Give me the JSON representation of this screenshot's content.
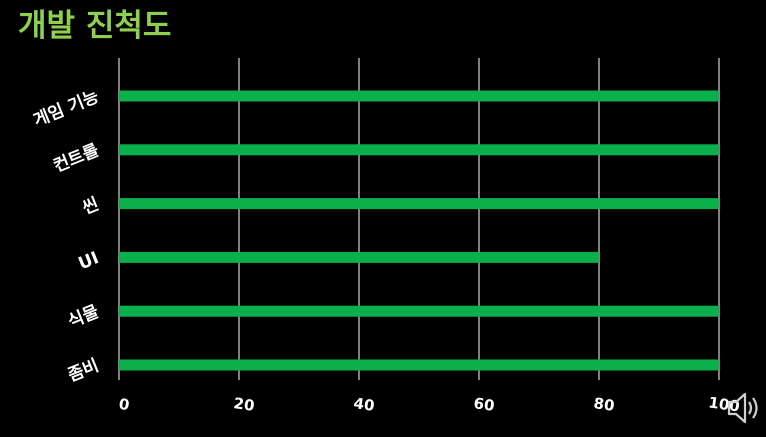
{
  "chart_data": {
    "type": "bar",
    "orientation": "horizontal",
    "title": "개발 진척도",
    "categories": [
      "게임 기능",
      "컨트롤",
      "씬",
      "UI",
      "식물",
      "좀비"
    ],
    "values": [
      100,
      100,
      100,
      80,
      100,
      100
    ],
    "xlim": [
      0,
      100
    ],
    "xticks": [
      0,
      20,
      40,
      60,
      80,
      100
    ],
    "xtick_labels": [
      "0",
      "20",
      "40",
      "60",
      "80",
      "100"
    ],
    "xlabel": "",
    "ylabel": "",
    "grid": true,
    "legend": "none",
    "colors": {
      "bar": "#0bb04c",
      "title": "#8fd14f",
      "text": "#ffffff",
      "grid": "#ffffff",
      "background": "#000000"
    }
  },
  "icons": {
    "speaker": "speaker-icon"
  }
}
